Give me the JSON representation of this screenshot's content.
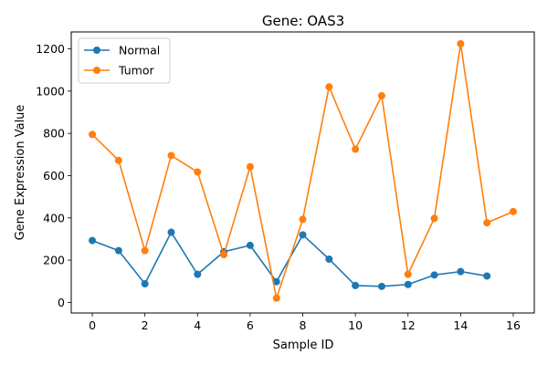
{
  "chart_data": {
    "type": "line",
    "title": "Gene: OAS3",
    "xlabel": "Sample ID",
    "ylabel": "Gene Expression Value",
    "xlim": [
      -0.8,
      16.8
    ],
    "ylim": [
      -50,
      1280
    ],
    "xticks": [
      0,
      2,
      4,
      6,
      8,
      10,
      12,
      14,
      16
    ],
    "yticks": [
      0,
      200,
      400,
      600,
      800,
      1000,
      1200
    ],
    "grid": false,
    "legend_position": "top-left",
    "series": [
      {
        "name": "Normal",
        "color": "#1f77b4",
        "x": [
          0,
          1,
          2,
          3,
          4,
          5,
          6,
          7,
          8,
          9,
          10,
          11,
          12,
          13,
          14,
          15
        ],
        "y": [
          293,
          245,
          88,
          332,
          133,
          240,
          270,
          98,
          320,
          205,
          80,
          76,
          85,
          130,
          146,
          125
        ]
      },
      {
        "name": "Tumor",
        "color": "#ff7f0e",
        "x": [
          0,
          1,
          2,
          3,
          4,
          5,
          6,
          7,
          8,
          9,
          10,
          11,
          12,
          13,
          14,
          15,
          16
        ],
        "y": [
          795,
          672,
          245,
          695,
          617,
          226,
          642,
          20,
          393,
          1020,
          725,
          978,
          133,
          398,
          1224,
          377,
          430
        ]
      }
    ]
  }
}
